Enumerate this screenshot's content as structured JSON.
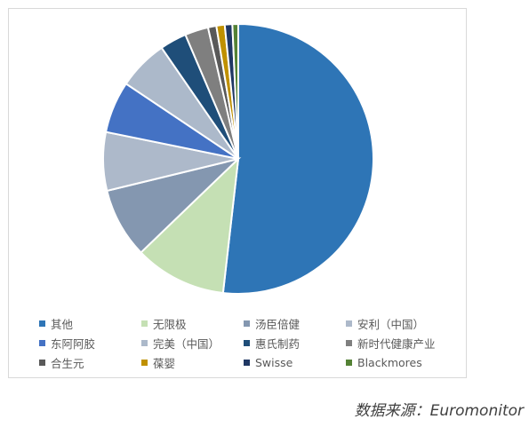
{
  "chart_data": {
    "type": "pie",
    "title": "",
    "legend_position": "bottom",
    "slices": [
      {
        "name": "其他",
        "value": 51.8,
        "color": "#2e75b6"
      },
      {
        "name": "无限极",
        "value": 11.0,
        "color": "#c5e0b4"
      },
      {
        "name": "汤臣倍健",
        "value": 8.4,
        "color": "#8497b0"
      },
      {
        "name": "安利（中国）",
        "value": 7.0,
        "color": "#adb9ca"
      },
      {
        "name": "东阿阿胶",
        "value": 6.2,
        "color": "#4472c4"
      },
      {
        "name": "完美（中国）",
        "value": 6.0,
        "color": "#acb9ca"
      },
      {
        "name": "惠氏制药",
        "value": 3.2,
        "color": "#1f4e79"
      },
      {
        "name": "新时代健康产业",
        "value": 2.8,
        "color": "#7f7f7f"
      },
      {
        "name": "合生元",
        "value": 1.0,
        "color": "#595959"
      },
      {
        "name": "葆婴",
        "value": 1.0,
        "color": "#bf9000"
      },
      {
        "name": "Swisse",
        "value": 0.9,
        "color": "#203864"
      },
      {
        "name": "Blackmores",
        "value": 0.7,
        "color": "#548235"
      }
    ]
  },
  "source_note": "数据来源：Euromonitor"
}
